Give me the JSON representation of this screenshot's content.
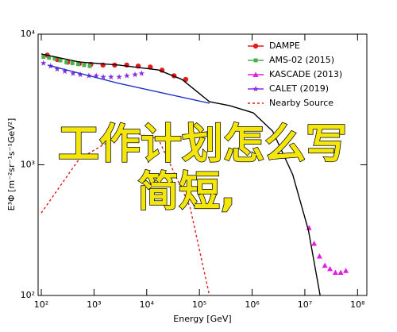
{
  "chart_data": {
    "type": "line",
    "x_label": "Energy [GeV]",
    "y_label": "E³Φ [m⁻²sr⁻¹s⁻¹GeV²]",
    "log_x": true,
    "log_y": true,
    "xlim": [
      87,
      150000000
    ],
    "ylim": [
      100,
      10000
    ],
    "xticks": [
      {
        "value": 100,
        "label": "10²"
      },
      {
        "value": 1000,
        "label": "10³"
      },
      {
        "value": 10000,
        "label": "10⁴"
      },
      {
        "value": 100000,
        "label": "10⁵"
      },
      {
        "value": 1000000,
        "label": "10⁶"
      },
      {
        "value": 10000000,
        "label": "10⁷"
      },
      {
        "value": 100000000,
        "label": "10⁸"
      }
    ],
    "yticks": [
      {
        "value": 100,
        "label": "10²"
      },
      {
        "value": 1000,
        "label": "10³"
      },
      {
        "value": 10000,
        "label": "10⁴"
      }
    ],
    "legend": "upper right",
    "series": [
      {
        "name": "DAMPE",
        "color": "#e41a1c",
        "marker": "circle",
        "x": [
          130,
          200,
          316,
          525,
          870,
          1480,
          2460,
          4170,
          6900,
          11700,
          19500,
          33000,
          55000
        ],
        "values": [
          6900,
          6400,
          6100,
          5950,
          5870,
          5800,
          5800,
          5800,
          5700,
          5600,
          5300,
          4800,
          4500
        ]
      },
      {
        "name": "AMS-02 (2015)",
        "color": "#4daf4a",
        "marker": "square",
        "x": [
          110,
          140,
          180,
          230,
          300,
          390,
          500,
          650,
          830
        ],
        "values": [
          6700,
          6600,
          6500,
          6300,
          6100,
          6000,
          5900,
          5800,
          5700
        ]
      },
      {
        "name": "KASCADE (2013)",
        "color": "#e01ee0",
        "marker": "triangle",
        "x": [
          12000000,
          15000000,
          19000000,
          24000000,
          30000000,
          38000000,
          48000000,
          60000000
        ],
        "values": [
          330,
          250,
          200,
          170,
          160,
          150,
          150,
          155
        ]
      },
      {
        "name": "CALET (2019)",
        "color": "#8a2be2",
        "marker": "star",
        "x": [
          110,
          150,
          200,
          280,
          400,
          550,
          800,
          1100,
          1500,
          2100,
          3000,
          4200,
          6000,
          8000
        ],
        "values": [
          6000,
          5700,
          5400,
          5200,
          5000,
          4900,
          4800,
          4800,
          4700,
          4700,
          4700,
          4800,
          4900,
          5000
        ]
      },
      {
        "name": "Nearby Source",
        "color": "#e41a1c",
        "dashed": true,
        "x": [
          100,
          525,
          4170,
          16600,
          66000,
          155000
        ],
        "values": [
          428,
          1110,
          1810,
          1580,
          480,
          100
        ]
      },
      {
        "color": "#000000",
        "x": [
          100,
          525,
          2950,
          16600,
          46800,
          155000,
          372000,
          1050000,
          2450000,
          5900000,
          11700000,
          19500000
        ],
        "values": [
          7050,
          6120,
          5800,
          5320,
          4500,
          3040,
          2840,
          2500,
          1810,
          840,
          315,
          100
        ]
      },
      {
        "color": "#1f2fc8",
        "x": [
          132,
          2950,
          155000
        ],
        "values": [
          5800,
          4200,
          2960
        ]
      }
    ],
    "annotations": [
      "工作计划怎么写",
      "简短,"
    ]
  }
}
